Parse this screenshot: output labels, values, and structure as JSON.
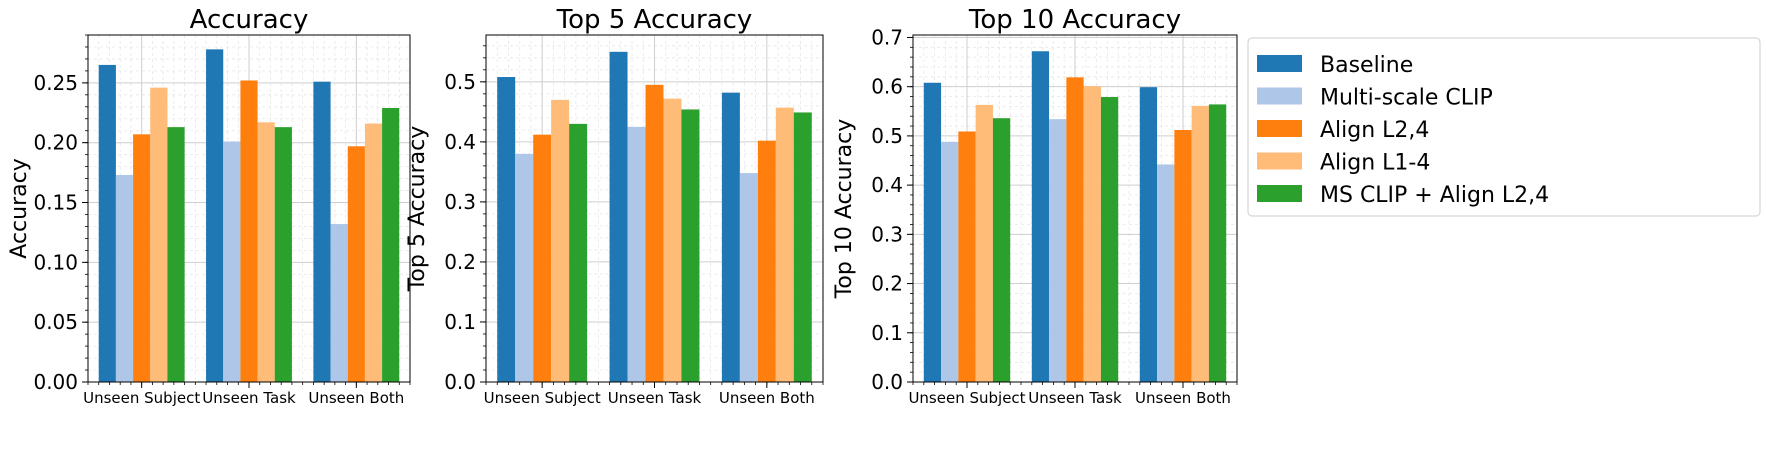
{
  "legend": {
    "placement": "right-outside",
    "entries": [
      {
        "label": "Baseline",
        "color": "#1f77b4"
      },
      {
        "label": "Multi-scale CLIP",
        "color": "#aec7e8"
      },
      {
        "label": "Align L2,4",
        "color": "#ff7f0e"
      },
      {
        "label": "Align L1-4",
        "color": "#ffbb78"
      },
      {
        "label": "MS CLIP + Align L2,4",
        "color": "#2ca02c"
      }
    ]
  },
  "chart_data": [
    {
      "type": "bar",
      "title": "Accuracy",
      "xlabel": "",
      "ylabel": "Accuracy",
      "grid": true,
      "ylim": [
        0,
        0.29
      ],
      "yticks": [
        0.0,
        0.05,
        0.1,
        0.15,
        0.2,
        0.25
      ],
      "ytick_labels": [
        "0.00",
        "0.05",
        "0.10",
        "0.15",
        "0.20",
        "0.25"
      ],
      "categories": [
        "Unseen Subject",
        "Unseen Task",
        "Unseen Both"
      ],
      "series": [
        {
          "name": "Baseline",
          "color": "#1f77b4",
          "values": [
            0.265,
            0.278,
            0.251
          ]
        },
        {
          "name": "Multi-scale CLIP",
          "color": "#aec7e8",
          "values": [
            0.173,
            0.201,
            0.132
          ]
        },
        {
          "name": "Align L2,4",
          "color": "#ff7f0e",
          "values": [
            0.207,
            0.252,
            0.197
          ]
        },
        {
          "name": "Align L1-4",
          "color": "#ffbb78",
          "values": [
            0.246,
            0.217,
            0.216
          ]
        },
        {
          "name": "MS CLIP + Align L2,4",
          "color": "#2ca02c",
          "values": [
            0.213,
            0.213,
            0.229
          ]
        }
      ]
    },
    {
      "type": "bar",
      "title": "Top 5 Accuracy",
      "xlabel": "",
      "ylabel": "Top 5 Accuracy",
      "grid": true,
      "ylim": [
        0,
        0.578
      ],
      "yticks": [
        0.0,
        0.1,
        0.2,
        0.3,
        0.4,
        0.5
      ],
      "ytick_labels": [
        "0.0",
        "0.1",
        "0.2",
        "0.3",
        "0.4",
        "0.5"
      ],
      "categories": [
        "Unseen Subject",
        "Unseen Task",
        "Unseen Both"
      ],
      "series": [
        {
          "name": "Baseline",
          "color": "#1f77b4",
          "values": [
            0.508,
            0.55,
            0.482
          ]
        },
        {
          "name": "Multi-scale CLIP",
          "color": "#aec7e8",
          "values": [
            0.38,
            0.425,
            0.348
          ]
        },
        {
          "name": "Align L2,4",
          "color": "#ff7f0e",
          "values": [
            0.412,
            0.495,
            0.402
          ]
        },
        {
          "name": "Align L1-4",
          "color": "#ffbb78",
          "values": [
            0.47,
            0.472,
            0.457
          ]
        },
        {
          "name": "MS CLIP + Align L2,4",
          "color": "#2ca02c",
          "values": [
            0.43,
            0.454,
            0.449
          ]
        }
      ]
    },
    {
      "type": "bar",
      "title": "Top 10 Accuracy",
      "xlabel": "",
      "ylabel": "Top 10 Accuracy",
      "grid": true,
      "ylim": [
        0,
        0.705
      ],
      "yticks": [
        0.0,
        0.1,
        0.2,
        0.3,
        0.4,
        0.5,
        0.6,
        0.7
      ],
      "ytick_labels": [
        "0.0",
        "0.1",
        "0.2",
        "0.3",
        "0.4",
        "0.5",
        "0.6",
        "0.7"
      ],
      "categories": [
        "Unseen Subject",
        "Unseen Task",
        "Unseen Both"
      ],
      "series": [
        {
          "name": "Baseline",
          "color": "#1f77b4",
          "values": [
            0.608,
            0.672,
            0.599
          ]
        },
        {
          "name": "Multi-scale CLIP",
          "color": "#aec7e8",
          "values": [
            0.488,
            0.534,
            0.442
          ]
        },
        {
          "name": "Align L2,4",
          "color": "#ff7f0e",
          "values": [
            0.509,
            0.619,
            0.512
          ]
        },
        {
          "name": "Align L1-4",
          "color": "#ffbb78",
          "values": [
            0.563,
            0.601,
            0.561
          ]
        },
        {
          "name": "MS CLIP + Align L2,4",
          "color": "#2ca02c",
          "values": [
            0.536,
            0.579,
            0.564
          ]
        }
      ]
    }
  ]
}
